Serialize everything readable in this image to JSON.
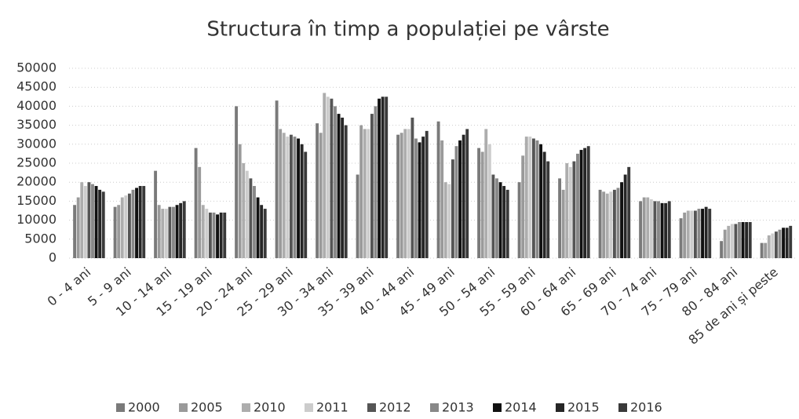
{
  "chart_data": {
    "type": "bar",
    "title": "Structura în timp a populației pe vârste",
    "categories": [
      "0 - 4 ani",
      "5 - 9 ani",
      "10 - 14 ani",
      "15 - 19 ani",
      "20 - 24 ani",
      "25 - 29 ani",
      "30 - 34 ani",
      "35 - 39 ani",
      "40 - 44 ani",
      "45 - 49 ani",
      "50 - 54 ani",
      "55 - 59 ani",
      "60 - 64 ani",
      "65 - 69 ani",
      "70 - 74 ani",
      "75 - 79 ani",
      "80 - 84 ani",
      "85 de ani și peste"
    ],
    "series": [
      {
        "name": "2000",
        "color": "#7a7a7a",
        "values": [
          14000,
          13500,
          23000,
          29000,
          40000,
          41500,
          35500,
          22000,
          32500,
          36000,
          29000,
          20000,
          21000,
          18000,
          15000,
          10500,
          4500,
          4000
        ]
      },
      {
        "name": "2005",
        "color": "#9a9a9a",
        "values": [
          16000,
          14000,
          14000,
          24000,
          30000,
          34000,
          33000,
          35000,
          33000,
          31000,
          28000,
          27000,
          18000,
          17500,
          16000,
          12000,
          7500,
          4000
        ]
      },
      {
        "name": "2010",
        "color": "#adadad",
        "values": [
          20000,
          16000,
          13000,
          14000,
          25000,
          33000,
          43500,
          34000,
          34000,
          20000,
          34000,
          32000,
          25000,
          17000,
          16000,
          12500,
          8500,
          6000
        ]
      },
      {
        "name": "2011",
        "color": "#cccccc",
        "values": [
          19000,
          16500,
          13000,
          13000,
          23000,
          32000,
          42500,
          34000,
          34000,
          19500,
          30000,
          32000,
          24000,
          17500,
          15500,
          12500,
          9000,
          6500
        ]
      },
      {
        "name": "2012",
        "color": "#555555",
        "values": [
          20000,
          17000,
          13500,
          12000,
          21000,
          32500,
          42000,
          38000,
          37000,
          26000,
          22000,
          31500,
          25500,
          18000,
          15000,
          12500,
          9000,
          7000
        ]
      },
      {
        "name": "2013",
        "color": "#888888",
        "values": [
          19500,
          18000,
          13500,
          12000,
          19000,
          32000,
          40000,
          40000,
          31500,
          29500,
          21000,
          31000,
          27500,
          18500,
          15000,
          13000,
          9500,
          7500
        ]
      },
      {
        "name": "2014",
        "color": "#111111",
        "values": [
          19000,
          18500,
          14000,
          11500,
          16000,
          31500,
          38000,
          42000,
          30500,
          31000,
          20000,
          30000,
          28500,
          20000,
          14500,
          13000,
          9500,
          8000
        ]
      },
      {
        "name": "2015",
        "color": "#262626",
        "values": [
          18000,
          19000,
          14500,
          12000,
          14000,
          30000,
          37000,
          42500,
          32000,
          32500,
          19000,
          28000,
          29000,
          22000,
          14500,
          13500,
          9500,
          8000
        ]
      },
      {
        "name": "2016",
        "color": "#3a3a3a",
        "values": [
          17500,
          19000,
          15000,
          12000,
          13000,
          28000,
          35000,
          42500,
          33500,
          34000,
          18000,
          25500,
          29500,
          24000,
          15000,
          13000,
          9500,
          8500
        ]
      }
    ],
    "ylim": [
      0,
      50000
    ],
    "yticks": [
      0,
      5000,
      10000,
      15000,
      20000,
      25000,
      30000,
      35000,
      40000,
      45000,
      50000
    ],
    "grid": true
  }
}
